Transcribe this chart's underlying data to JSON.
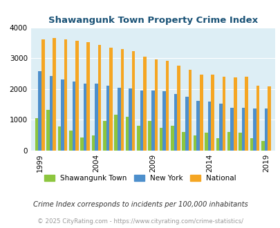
{
  "years": [
    1999,
    2000,
    2001,
    2002,
    2003,
    2004,
    2005,
    2006,
    2007,
    2008,
    2009,
    2010,
    2011,
    2012,
    2013,
    2014,
    2015,
    2016,
    2017,
    2018,
    2019
  ],
  "shawangunk": [
    1050,
    1320,
    780,
    640,
    420,
    480,
    950,
    1160,
    1100,
    800,
    970,
    740,
    810,
    600,
    480,
    580,
    400,
    600,
    580,
    400,
    300
  ],
  "new_york": [
    2580,
    2430,
    2310,
    2240,
    2180,
    2170,
    2100,
    2040,
    2010,
    1950,
    1950,
    1920,
    1840,
    1740,
    1620,
    1600,
    1530,
    1390,
    1380,
    1360,
    1360
  ],
  "national": [
    3620,
    3650,
    3620,
    3570,
    3510,
    3430,
    3340,
    3290,
    3230,
    3050,
    2960,
    2920,
    2750,
    2620,
    2470,
    2460,
    2390,
    2380,
    2390,
    2100,
    2090
  ],
  "title": "Shawangunk Town Property Crime Index",
  "ylim": [
    0,
    4000
  ],
  "yticks": [
    0,
    1000,
    2000,
    3000,
    4000
  ],
  "xtick_labels": [
    "1999",
    "2004",
    "2009",
    "2014",
    "2019"
  ],
  "xtick_positions": [
    0,
    5,
    10,
    15,
    20
  ],
  "color_shawangunk": "#8dc63f",
  "color_ny": "#4d8fcc",
  "color_national": "#f5a623",
  "bg_color": "#ddeef5",
  "title_color": "#1a5276",
  "legend_label_shawangunk": "Shawangunk Town",
  "legend_label_ny": "New York",
  "legend_label_national": "National",
  "footnote1": "Crime Index corresponds to incidents per 100,000 inhabitants",
  "footnote2": "© 2025 CityRating.com - https://www.cityrating.com/crime-statistics/"
}
